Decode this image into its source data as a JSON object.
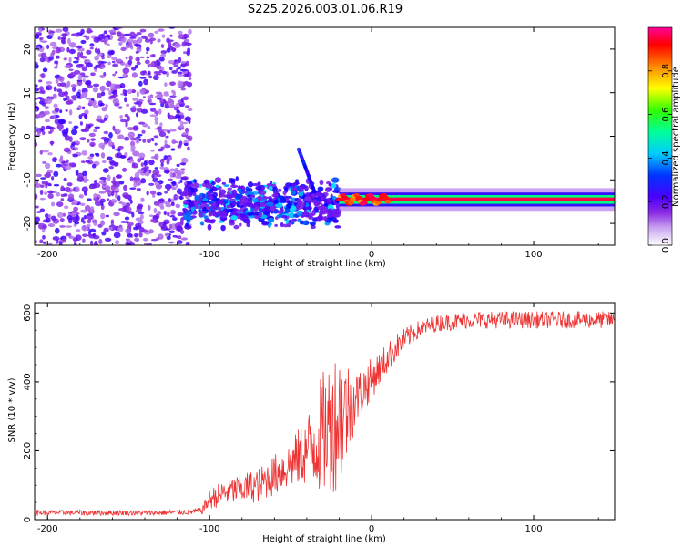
{
  "title": "S225.2026.003.01.06.R19",
  "colors": {
    "snr_line": "#ee3333",
    "colormap": [
      "#ffffff",
      "#8a2be2",
      "#4b00ff",
      "#0000ff",
      "#00ffff",
      "#00ff00",
      "#ffff00",
      "#ff0000",
      "#ff0099"
    ]
  },
  "chart_data": [
    {
      "type": "heatmap",
      "title": "S225.2026.003.01.06.R19",
      "xlabel": "Height of straight line (km)",
      "ylabel": "Frequency (Hz)",
      "xlim": [
        -208,
        150
      ],
      "ylim": [
        -25,
        25
      ],
      "x_ticks": [
        -200,
        -100,
        0,
        100
      ],
      "x_tick_labels": [
        "-200",
        "-100",
        "0",
        "100"
      ],
      "y_ticks": [
        -20,
        -10,
        0,
        10,
        20
      ],
      "y_tick_labels": [
        "-20",
        "-10",
        "0",
        "10",
        "20"
      ],
      "colorbar": {
        "label": "Normalized spectral amplitude",
        "range": [
          0,
          1
        ],
        "ticks": [
          0.0,
          0.2,
          0.4,
          0.6,
          0.8
        ],
        "tick_labels": [
          "0.0",
          "0.2",
          "0.4",
          "0.6",
          "0.8"
        ]
      },
      "regions": [
        {
          "x": [
            -208,
            -112
          ],
          "y": [
            -25,
            25
          ],
          "kind": "scattered noise",
          "amplitude": [
            0.05,
            0.25
          ]
        },
        {
          "x": [
            -115,
            -20
          ],
          "y": [
            -24,
            -9
          ],
          "kind": "scattered clusters",
          "amplitude": [
            0.1,
            0.45
          ]
        },
        {
          "x": [
            -20,
            150
          ],
          "y": [
            -16,
            -13
          ],
          "kind": "narrow band",
          "center_frequency": -14.5,
          "amplitude": [
            0.3,
            1.0
          ]
        }
      ]
    },
    {
      "type": "line",
      "xlabel": "Height of straight line (km)",
      "ylabel": "SNR (10 * v/v)",
      "xlim": [
        -208,
        150
      ],
      "ylim": [
        0,
        630
      ],
      "x_ticks": [
        -200,
        -100,
        0,
        100
      ],
      "x_tick_labels": [
        "-200",
        "-100",
        "0",
        "100"
      ],
      "y_ticks": [
        0,
        200,
        400,
        600
      ],
      "y_tick_labels": [
        "0",
        "200",
        "400",
        "600"
      ],
      "series": [
        {
          "x": [
            -208,
            -190,
            -170,
            -150,
            -130,
            -115,
            -105,
            -100,
            -90,
            -80,
            -70,
            -60,
            -50,
            -40,
            -35,
            -30,
            -25,
            -20,
            -15,
            -10,
            -5,
            0,
            5,
            10,
            15,
            20,
            25,
            30,
            40,
            50,
            60,
            70,
            80,
            90,
            100,
            110,
            120,
            130,
            140,
            150
          ],
          "y": [
            20,
            20,
            20,
            20,
            20,
            22,
            25,
            60,
            80,
            90,
            100,
            130,
            160,
            200,
            230,
            250,
            280,
            300,
            320,
            350,
            380,
            410,
            440,
            470,
            500,
            520,
            540,
            555,
            570,
            575,
            580,
            580,
            580,
            580,
            580,
            580,
            580,
            580,
            580,
            580
          ],
          "noise": [
            8,
            8,
            8,
            8,
            8,
            8,
            10,
            30,
            40,
            45,
            50,
            60,
            70,
            100,
            150,
            180,
            200,
            220,
            150,
            80,
            70,
            60,
            50,
            45,
            40,
            35,
            30,
            25,
            25,
            25,
            25,
            25,
            25,
            25,
            25,
            25,
            25,
            25,
            25,
            25
          ]
        }
      ]
    }
  ]
}
